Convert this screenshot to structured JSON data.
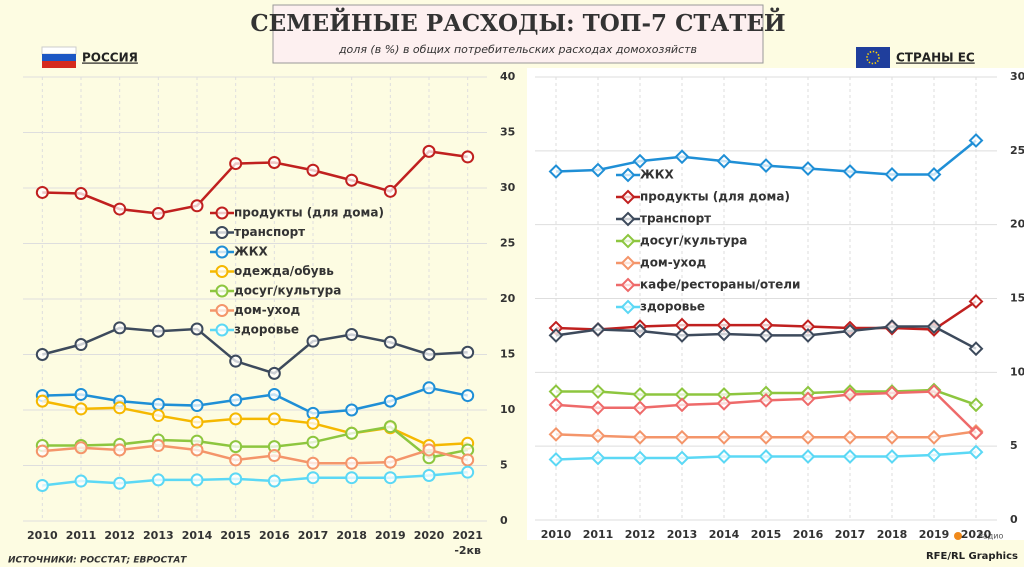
{
  "title": "СЕМЕЙНЫЕ РАСХОДЫ: ТОП-7 СТАТЕЙ",
  "subtitle": "доля (в %) в общих потребительских расходах домохозяйств",
  "source": "ИСТОЧНИКИ: РОССТАТ; ЕВРОСТАТ",
  "credit": "RFE/RL Graphics",
  "logo_text": "Радио",
  "chart_data": [
    {
      "type": "line",
      "title": "РОССИЯ",
      "marker": "circle",
      "legend": "center",
      "grid": true,
      "categories": [
        "2010",
        "2011",
        "2012",
        "2013",
        "2014",
        "2015",
        "2016",
        "2017",
        "2018",
        "2019",
        "2020",
        "2021 -2кв"
      ],
      "ylim": [
        0,
        40
      ],
      "yticks": [
        0,
        5,
        10,
        15,
        20,
        25,
        30,
        35,
        40
      ],
      "series": [
        {
          "name": "продукты (для дома)",
          "color": "#c0201f",
          "values": [
            29.6,
            29.5,
            28.1,
            27.7,
            28.4,
            32.2,
            32.3,
            31.6,
            30.7,
            29.7,
            33.3,
            32.8
          ]
        },
        {
          "name": "транспорт",
          "color": "#3d4a5c",
          "values": [
            15.0,
            15.9,
            17.4,
            17.1,
            17.3,
            14.4,
            13.3,
            16.2,
            16.8,
            16.1,
            15.0,
            15.2
          ]
        },
        {
          "name": "ЖКХ",
          "color": "#1f8fd6",
          "values": [
            11.3,
            11.4,
            10.8,
            10.5,
            10.4,
            10.9,
            11.4,
            9.7,
            10.0,
            10.8,
            12.0,
            11.3
          ]
        },
        {
          "name": "одежда/обувь",
          "color": "#f5b800",
          "values": [
            10.8,
            10.1,
            10.2,
            9.5,
            8.9,
            9.2,
            9.2,
            8.8,
            7.9,
            8.4,
            6.8,
            7.0
          ]
        },
        {
          "name": "досуг/культура",
          "color": "#8dc63f",
          "values": [
            6.8,
            6.8,
            6.9,
            7.3,
            7.2,
            6.7,
            6.7,
            7.1,
            7.9,
            8.5,
            5.7,
            6.4
          ]
        },
        {
          "name": "дом-уход",
          "color": "#f4956a",
          "values": [
            6.3,
            6.6,
            6.4,
            6.8,
            6.4,
            5.5,
            5.9,
            5.2,
            5.2,
            5.3,
            6.4,
            5.5
          ]
        },
        {
          "name": "здоровье",
          "color": "#5bd8f5",
          "values": [
            3.2,
            3.6,
            3.4,
            3.7,
            3.7,
            3.8,
            3.6,
            3.9,
            3.9,
            3.9,
            4.1,
            4.4
          ]
        }
      ]
    },
    {
      "type": "line",
      "title": "СТРАНЫ ЕС",
      "marker": "diamond",
      "legend": "upper-left",
      "grid": true,
      "categories": [
        "2010",
        "2011",
        "2012",
        "2013",
        "2014",
        "2015",
        "2016",
        "2017",
        "2018",
        "2019",
        "2020"
      ],
      "ylim": [
        0,
        30
      ],
      "yticks": [
        0,
        5,
        10,
        15,
        20,
        25,
        30
      ],
      "series": [
        {
          "name": "ЖКХ",
          "color": "#1f8fd6",
          "values": [
            23.6,
            23.7,
            24.3,
            24.6,
            24.3,
            24.0,
            23.8,
            23.6,
            23.4,
            23.4,
            25.7
          ]
        },
        {
          "name": "продукты (для дома)",
          "color": "#c0201f",
          "values": [
            13.0,
            12.9,
            13.1,
            13.2,
            13.2,
            13.2,
            13.1,
            13.0,
            13.0,
            12.9,
            14.8
          ]
        },
        {
          "name": "транспорт",
          "color": "#3d4a5c",
          "values": [
            12.5,
            12.9,
            12.8,
            12.5,
            12.6,
            12.5,
            12.5,
            12.8,
            13.1,
            13.1,
            11.6
          ]
        },
        {
          "name": "досуг/культура",
          "color": "#8dc63f",
          "values": [
            8.7,
            8.7,
            8.5,
            8.5,
            8.5,
            8.6,
            8.6,
            8.7,
            8.7,
            8.8,
            7.8
          ]
        },
        {
          "name": "дом-уход",
          "color": "#f4956a",
          "values": [
            5.8,
            5.7,
            5.6,
            5.6,
            5.6,
            5.6,
            5.6,
            5.6,
            5.6,
            5.6,
            6.0
          ]
        },
        {
          "name": "кафе/рестораны/отели",
          "color": "#ee6a6a",
          "values": [
            7.8,
            7.6,
            7.6,
            7.8,
            7.9,
            8.1,
            8.2,
            8.5,
            8.6,
            8.7,
            5.9
          ]
        },
        {
          "name": "здоровье",
          "color": "#5bd8f5",
          "values": [
            4.1,
            4.2,
            4.2,
            4.2,
            4.3,
            4.3,
            4.3,
            4.3,
            4.3,
            4.4,
            4.6
          ]
        }
      ]
    }
  ]
}
